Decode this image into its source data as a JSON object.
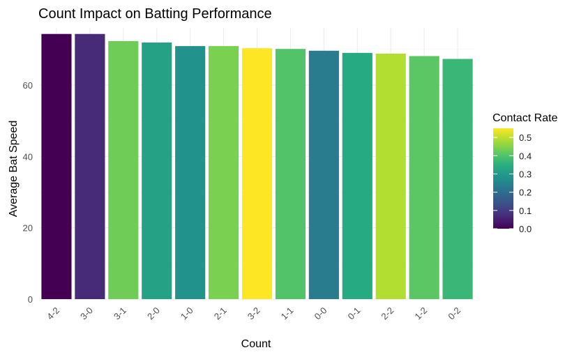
{
  "chart_data": {
    "type": "bar",
    "title": "Count Impact on Batting Performance",
    "xlabel": "Count",
    "ylabel": "Average Bat Speed",
    "categories": [
      "4-2",
      "3-0",
      "3-1",
      "2-0",
      "1-0",
      "2-1",
      "3-2",
      "1-1",
      "0-0",
      "0-1",
      "2-2",
      "1-2",
      "0-2"
    ],
    "values": [
      74.3,
      74.3,
      72.3,
      71.9,
      70.9,
      70.9,
      70.3,
      70.1,
      69.6,
      69.0,
      68.8,
      68.1,
      67.3
    ],
    "fill_values": [
      0.0,
      0.07,
      0.43,
      0.32,
      0.28,
      0.44,
      0.55,
      0.4,
      0.23,
      0.34,
      0.49,
      0.41,
      0.37
    ],
    "ylim": [
      0,
      76
    ],
    "yticks": [
      0,
      20,
      40,
      60
    ],
    "grid": true,
    "legend": {
      "title": "Contact Rate",
      "position": "right",
      "ticks": [
        "0.0",
        "0.1",
        "0.2",
        "0.3",
        "0.4",
        "0.5"
      ],
      "range": [
        0,
        0.55
      ]
    },
    "colormap": "viridis"
  }
}
